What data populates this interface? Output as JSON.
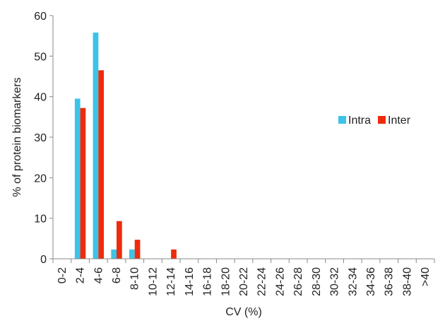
{
  "chart_data": {
    "type": "bar",
    "title": "",
    "xlabel": "CV (%)",
    "ylabel": "% of protein biomarkers",
    "ylim": [
      0,
      60
    ],
    "yticks": [
      0,
      10,
      20,
      30,
      40,
      50,
      60
    ],
    "grid": false,
    "legend_position": "right",
    "categories": [
      "0-2",
      "2-4",
      "4-6",
      "6-8",
      "8-10",
      "10-12",
      "12-14",
      "14-16",
      "16-18",
      "18-20",
      "20-22",
      "22-24",
      "24-26",
      "26-28",
      "28-30",
      "30-32",
      "32-34",
      "34-36",
      "36-38",
      "38-40",
      ">40"
    ],
    "series": [
      {
        "name": "Intra",
        "color": "#3cc3e8",
        "values": [
          0,
          39.5,
          55.8,
          2.3,
          2.3,
          0,
          0,
          0,
          0,
          0,
          0,
          0,
          0,
          0,
          0,
          0,
          0,
          0,
          0,
          0,
          0
        ]
      },
      {
        "name": "Inter",
        "color": "#ee2b0b",
        "values": [
          0,
          37.2,
          46.5,
          9.3,
          4.7,
          0,
          2.3,
          0,
          0,
          0,
          0,
          0,
          0,
          0,
          0,
          0,
          0,
          0,
          0,
          0,
          0
        ]
      }
    ]
  }
}
